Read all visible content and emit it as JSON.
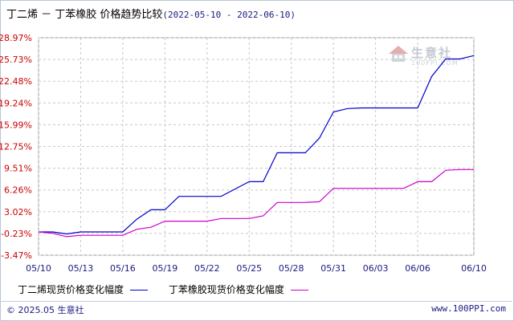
{
  "header": {
    "title": "丁二烯 － 丁苯橡胶 价格趋势比较",
    "date_range": "(2022-05-10 - 2022-06-10)"
  },
  "watermark": {
    "brand": "生意社",
    "url": "100PPI.COM",
    "icon": "house-logo-icon"
  },
  "footer": {
    "copyright": "© 2025.05 生意社",
    "url": "www.100PPI.com"
  },
  "colors": {
    "series1": "#0000cc",
    "series2": "#cc00cc",
    "ytick": "#cc0000",
    "grid": "#c8c8c8"
  },
  "chart_data": {
    "type": "line",
    "yticks": [
      "28.97%",
      "25.73%",
      "22.48%",
      "19.24%",
      "15.99%",
      "12.75%",
      "9.51%",
      "6.26%",
      "3.02%",
      "-0.23%",
      "-3.47%"
    ],
    "ytick_values": [
      28.97,
      25.73,
      22.48,
      19.24,
      15.99,
      12.75,
      9.51,
      6.26,
      3.02,
      -0.23,
      -3.47
    ],
    "xticks": [
      "05/10",
      "05/13",
      "05/16",
      "05/19",
      "05/22",
      "05/25",
      "05/28",
      "05/31",
      "06/03",
      "06/06",
      "06/10"
    ],
    "ylim": [
      -3.47,
      28.97
    ],
    "grid": true,
    "series": [
      {
        "name": "丁二烯现货价格变化幅度",
        "x": [
          "05/10",
          "05/11",
          "05/12",
          "05/13",
          "05/14",
          "05/15",
          "05/16",
          "05/17",
          "05/18",
          "05/19",
          "05/20",
          "05/21",
          "05/22",
          "05/23",
          "05/24",
          "05/25",
          "05/26",
          "05/27",
          "05/28",
          "05/29",
          "05/30",
          "05/31",
          "06/01",
          "06/02",
          "06/03",
          "06/04",
          "06/05",
          "06/06",
          "06/07",
          "06/08",
          "06/09",
          "06/10"
        ],
        "values": [
          0,
          0,
          -0.3,
          0,
          0,
          0,
          0,
          1.9,
          3.3,
          3.3,
          5.3,
          5.3,
          5.3,
          5.3,
          6.4,
          7.5,
          7.5,
          11.8,
          11.8,
          11.8,
          14.0,
          17.9,
          18.4,
          18.5,
          18.5,
          18.5,
          18.5,
          18.5,
          23.2,
          25.8,
          25.8,
          26.3
        ]
      },
      {
        "name": "丁苯橡胶现货价格变化幅度",
        "x": [
          "05/10",
          "05/11",
          "05/12",
          "05/13",
          "05/14",
          "05/15",
          "05/16",
          "05/17",
          "05/18",
          "05/19",
          "05/20",
          "05/21",
          "05/22",
          "05/23",
          "05/24",
          "05/25",
          "05/26",
          "05/27",
          "05/28",
          "05/29",
          "05/30",
          "05/31",
          "06/01",
          "06/02",
          "06/03",
          "06/04",
          "06/05",
          "06/06",
          "06/07",
          "06/08",
          "06/09",
          "06/10"
        ],
        "values": [
          0,
          -0.2,
          -0.7,
          -0.5,
          -0.5,
          -0.5,
          -0.5,
          0.4,
          0.7,
          1.6,
          1.6,
          1.6,
          1.6,
          2.0,
          2.0,
          2.0,
          2.4,
          4.4,
          4.4,
          4.4,
          4.5,
          6.5,
          6.5,
          6.5,
          6.5,
          6.5,
          6.5,
          7.5,
          7.5,
          9.2,
          9.3,
          9.3
        ]
      }
    ]
  }
}
